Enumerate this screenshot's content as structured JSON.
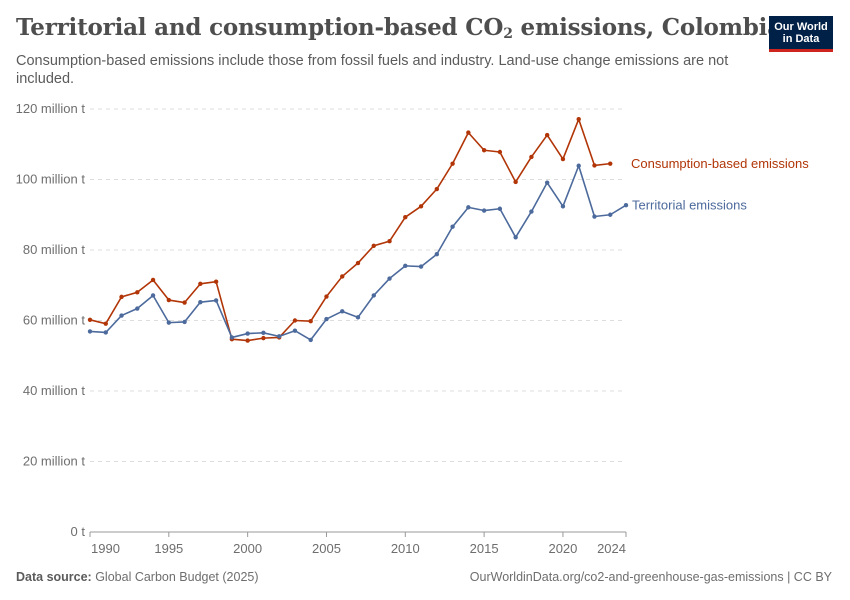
{
  "header": {
    "title": "Territorial and consumption-based CO",
    "title_sub": "2",
    "title_suffix": " emissions, Colombia",
    "subtitle": "Consumption-based emissions include those from fossil fuels and industry. Land-use change emissions are not included."
  },
  "logo": {
    "line1": "Our World",
    "line2": "in Data",
    "bg": "#002147",
    "accent": "#ce261e"
  },
  "footer": {
    "source_label": "Data source:",
    "source_text": " Global Carbon Budget (2025)",
    "url": "OurWorldinData.org/co2-and-greenhouse-gas-emissions | CC BY"
  },
  "chart_data": {
    "type": "line",
    "x": [
      1990,
      1991,
      1992,
      1993,
      1994,
      1995,
      1996,
      1997,
      1998,
      1999,
      2000,
      2001,
      2002,
      2003,
      2004,
      2005,
      2006,
      2007,
      2008,
      2009,
      2010,
      2011,
      2012,
      2013,
      2014,
      2015,
      2016,
      2017,
      2018,
      2019,
      2020,
      2021,
      2022,
      2023,
      2024
    ],
    "series": [
      {
        "name": "Consumption-based emissions",
        "color": "#b13507",
        "values": [
          60.2,
          59.1,
          66.7,
          68.0,
          71.5,
          65.8,
          65.1,
          70.4,
          71.0,
          54.7,
          54.3,
          55.0,
          55.2,
          60.0,
          59.8,
          66.8,
          72.5,
          76.3,
          81.2,
          82.5,
          89.3,
          92.4,
          97.3,
          104.5,
          113.3,
          108.3,
          107.8,
          99.3,
          106.4,
          112.6,
          105.8,
          117.1,
          104.0,
          104.5,
          null
        ]
      },
      {
        "name": "Territorial emissions",
        "color": "#4c6a9c",
        "values": [
          56.9,
          56.6,
          61.4,
          63.4,
          67.1,
          59.4,
          59.6,
          65.2,
          65.7,
          55.2,
          56.3,
          56.5,
          55.5,
          57.1,
          54.5,
          60.4,
          62.6,
          60.9,
          67.1,
          71.9,
          75.5,
          75.3,
          78.8,
          86.6,
          92.1,
          91.2,
          91.7,
          83.6,
          90.9,
          99.1,
          92.4,
          103.9,
          89.5,
          90.0,
          92.7
        ]
      }
    ],
    "y_ticks": [
      0,
      20,
      40,
      60,
      80,
      100,
      120
    ],
    "y_tick_labels": [
      "0 t",
      "20 million t",
      "40 million t",
      "60 million t",
      "80 million t",
      "100 million t",
      "120 million t"
    ],
    "x_ticks": [
      1990,
      1995,
      2000,
      2005,
      2010,
      2015,
      2020,
      2024
    ],
    "ylim": [
      0,
      120
    ],
    "xlim": [
      1990,
      2024
    ],
    "grid": true,
    "xlabel": "",
    "ylabel": ""
  }
}
